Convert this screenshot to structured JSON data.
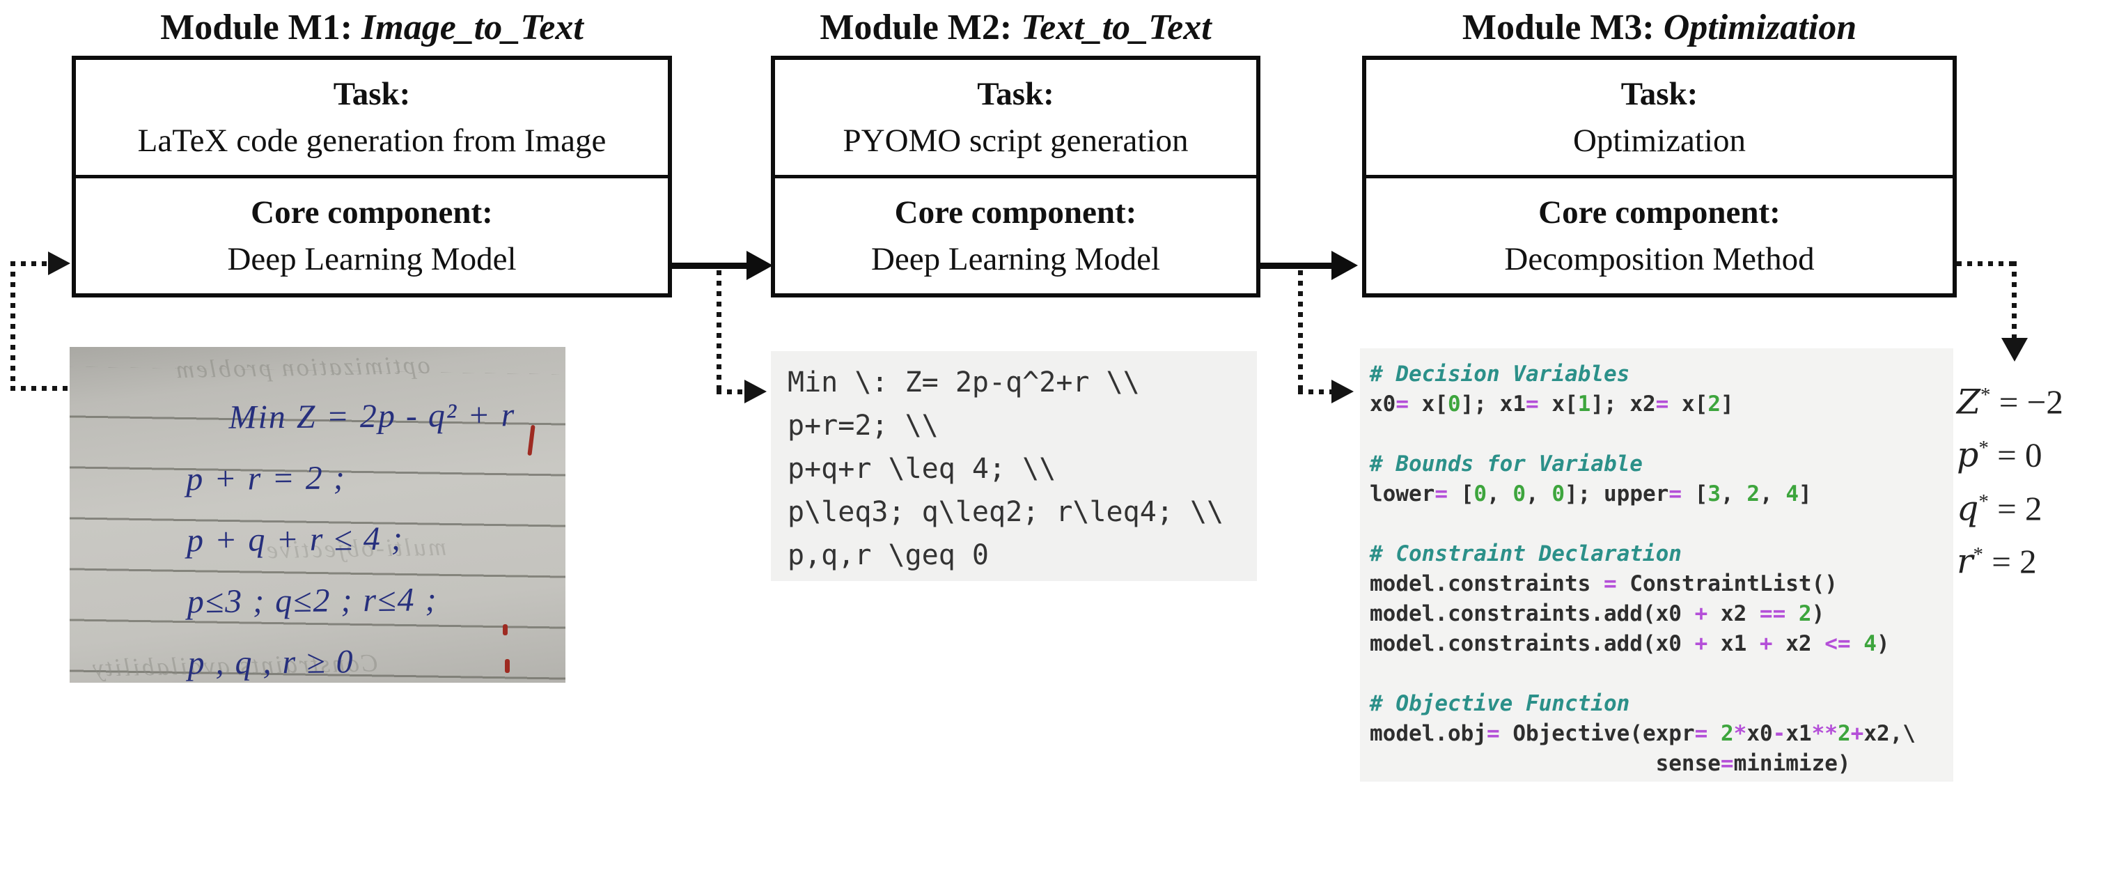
{
  "modules": [
    {
      "title_prefix": "Module M1: ",
      "title_italic": "Image_to_Text",
      "task_label": "Task:",
      "task": "LaTeX code generation from Image",
      "core_label": "Core component:",
      "core": "Deep Learning Model"
    },
    {
      "title_prefix": "Module M2: ",
      "title_italic": "Text_to_Text",
      "task_label": "Task:",
      "task": "PYOMO script generation",
      "core_label": "Core component:",
      "core": "Deep Learning Model"
    },
    {
      "title_prefix": "Module M3: ",
      "title_italic": "Optimization",
      "task_label": "Task:",
      "task": "Optimization",
      "core_label": "Core component:",
      "core": "Decomposition Method"
    }
  ],
  "handwritten_note": {
    "bleed_top": "optimization problem",
    "bleed_middle": "multi-objective",
    "bleed_bottom": "Constraints availability",
    "lines": [
      "Min Z = 2p - q² + r",
      "p + r  =  2 ;",
      "p + q + r  ≤ 4 ;",
      "p≤3 ;  q≤2 ;  r≤4 ;",
      "p , q , r  ≥ 0"
    ]
  },
  "latex_code": {
    "lines": [
      "Min \\: Z= 2p-q^2+r \\\\",
      "p+r=2; \\\\",
      "p+q+r \\leq 4; \\\\",
      "p\\leq3; q\\leq2; r\\leq4; \\\\",
      "p,q,r \\geq 0"
    ]
  },
  "python_code": {
    "lines": [
      [
        [
          "# Decision Variables",
          "c"
        ]
      ],
      [
        [
          "x0",
          "t"
        ],
        [
          "=",
          "o"
        ],
        [
          " x[",
          "t"
        ],
        [
          "0",
          "n"
        ],
        [
          "]; x1",
          "t"
        ],
        [
          "=",
          "o"
        ],
        [
          " x[",
          "t"
        ],
        [
          "1",
          "n"
        ],
        [
          "]; x2",
          "t"
        ],
        [
          "=",
          "o"
        ],
        [
          " x[",
          "t"
        ],
        [
          "2",
          "n"
        ],
        [
          "]",
          "t"
        ]
      ],
      [],
      [
        [
          "# Bounds for Variable",
          "c"
        ]
      ],
      [
        [
          "lower",
          "t"
        ],
        [
          "=",
          "o"
        ],
        [
          " [",
          "t"
        ],
        [
          "0",
          "n"
        ],
        [
          ", ",
          "t"
        ],
        [
          "0",
          "n"
        ],
        [
          ", ",
          "t"
        ],
        [
          "0",
          "n"
        ],
        [
          "]; upper",
          "t"
        ],
        [
          "=",
          "o"
        ],
        [
          " [",
          "t"
        ],
        [
          "3",
          "n"
        ],
        [
          ", ",
          "t"
        ],
        [
          "2",
          "n"
        ],
        [
          ", ",
          "t"
        ],
        [
          "4",
          "n"
        ],
        [
          "]",
          "t"
        ]
      ],
      [],
      [
        [
          "# Constraint Declaration",
          "c"
        ]
      ],
      [
        [
          "model.constraints ",
          "t"
        ],
        [
          "=",
          "o"
        ],
        [
          " ConstraintList()",
          "t"
        ]
      ],
      [
        [
          "model.constraints.add(x0 ",
          "t"
        ],
        [
          "+",
          "o"
        ],
        [
          " x2 ",
          "t"
        ],
        [
          "==",
          "o"
        ],
        [
          " ",
          "t"
        ],
        [
          "2",
          "n"
        ],
        [
          ")",
          "t"
        ]
      ],
      [
        [
          "model.constraints.add(x0 ",
          "t"
        ],
        [
          "+",
          "o"
        ],
        [
          " x1 ",
          "t"
        ],
        [
          "+",
          "o"
        ],
        [
          " x2 ",
          "t"
        ],
        [
          "<=",
          "o"
        ],
        [
          " ",
          "t"
        ],
        [
          "4",
          "n"
        ],
        [
          ")",
          "t"
        ]
      ],
      [],
      [
        [
          "# Objective Function",
          "c"
        ]
      ],
      [
        [
          "model.obj",
          "t"
        ],
        [
          "=",
          "o"
        ],
        [
          " Objective(expr",
          "t"
        ],
        [
          "=",
          "o"
        ],
        [
          " ",
          "t"
        ],
        [
          "2",
          "n"
        ],
        [
          "*",
          "o"
        ],
        [
          "x0",
          "t"
        ],
        [
          "-",
          "o"
        ],
        [
          "x1",
          "t"
        ],
        [
          "**",
          "o"
        ],
        [
          "2",
          "n"
        ],
        [
          "+",
          "o"
        ],
        [
          "x2,\\",
          "t"
        ]
      ],
      [
        [
          "                      sense",
          "t"
        ],
        [
          "=",
          "o"
        ],
        [
          "minimize)",
          "t"
        ]
      ]
    ]
  },
  "results": {
    "lines": [
      {
        "var": "Z",
        "sup": "*",
        "value": "−2"
      },
      {
        "var": "p",
        "sup": "*",
        "value": "0"
      },
      {
        "var": "q",
        "sup": "*",
        "value": "2"
      },
      {
        "var": "r",
        "sup": "*",
        "value": "2"
      }
    ]
  },
  "colors": {
    "box_border": "#0d0d0d",
    "code_comment_teal": "#2b9089",
    "code_operator_purple": "#b44fd8",
    "code_number_green": "#3da53d",
    "handwriting_blue": "#262f7d",
    "latex_block_bg": "#f1f1f0",
    "python_block_bg": "#f3f3f2"
  }
}
